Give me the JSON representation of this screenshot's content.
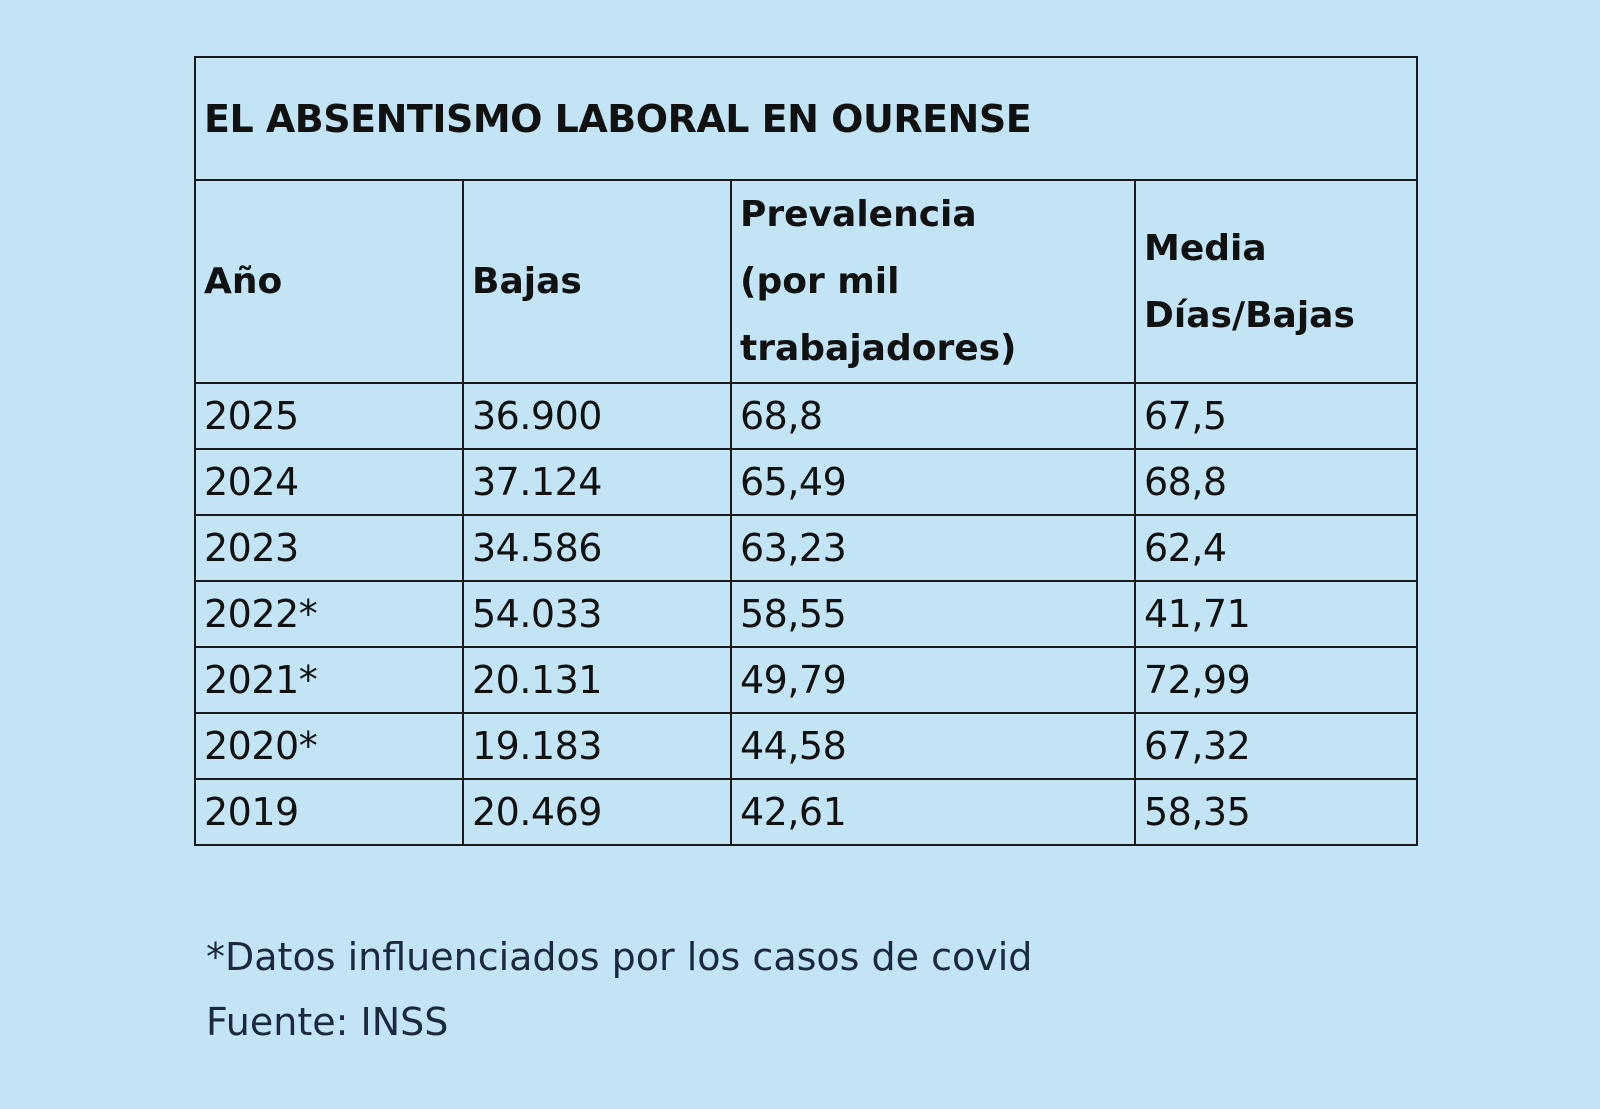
{
  "chart_data": {
    "type": "table",
    "title": "EL ABSENTISMO LABORAL EN OURENSE",
    "columns": [
      "Año",
      "Bajas",
      "Prevalencia (por mil trabajadores)",
      "Media Días/Bajas"
    ],
    "rows": [
      [
        "2025",
        "36.900",
        "68,8",
        "67,5"
      ],
      [
        "2024",
        "37.124",
        "65,49",
        "68,8"
      ],
      [
        "2023",
        "34.586",
        "63,23",
        "62,4"
      ],
      [
        "2022*",
        "54.033",
        "58,55",
        "41,71"
      ],
      [
        "2021*",
        "20.131",
        "49,79",
        "72,99"
      ],
      [
        "2020*",
        "19.183",
        "44,58",
        "67,32"
      ],
      [
        "2019",
        "20.469",
        "42,61",
        "58,35"
      ]
    ]
  },
  "header": {
    "col1": "Año",
    "col2": "Bajas",
    "col3_line1": "Prevalencia",
    "col3_line2": "(por mil",
    "col3_line3": "trabajadores)",
    "col4_line1": "Media",
    "col4_line2": "Días/Bajas"
  },
  "footnotes": {
    "covid": "*Datos influenciados por los casos de covid",
    "source": "Fuente: INSS"
  },
  "colors": {
    "background": "#c3e4f5",
    "border": "#1a1a1a",
    "text": "#111111"
  }
}
